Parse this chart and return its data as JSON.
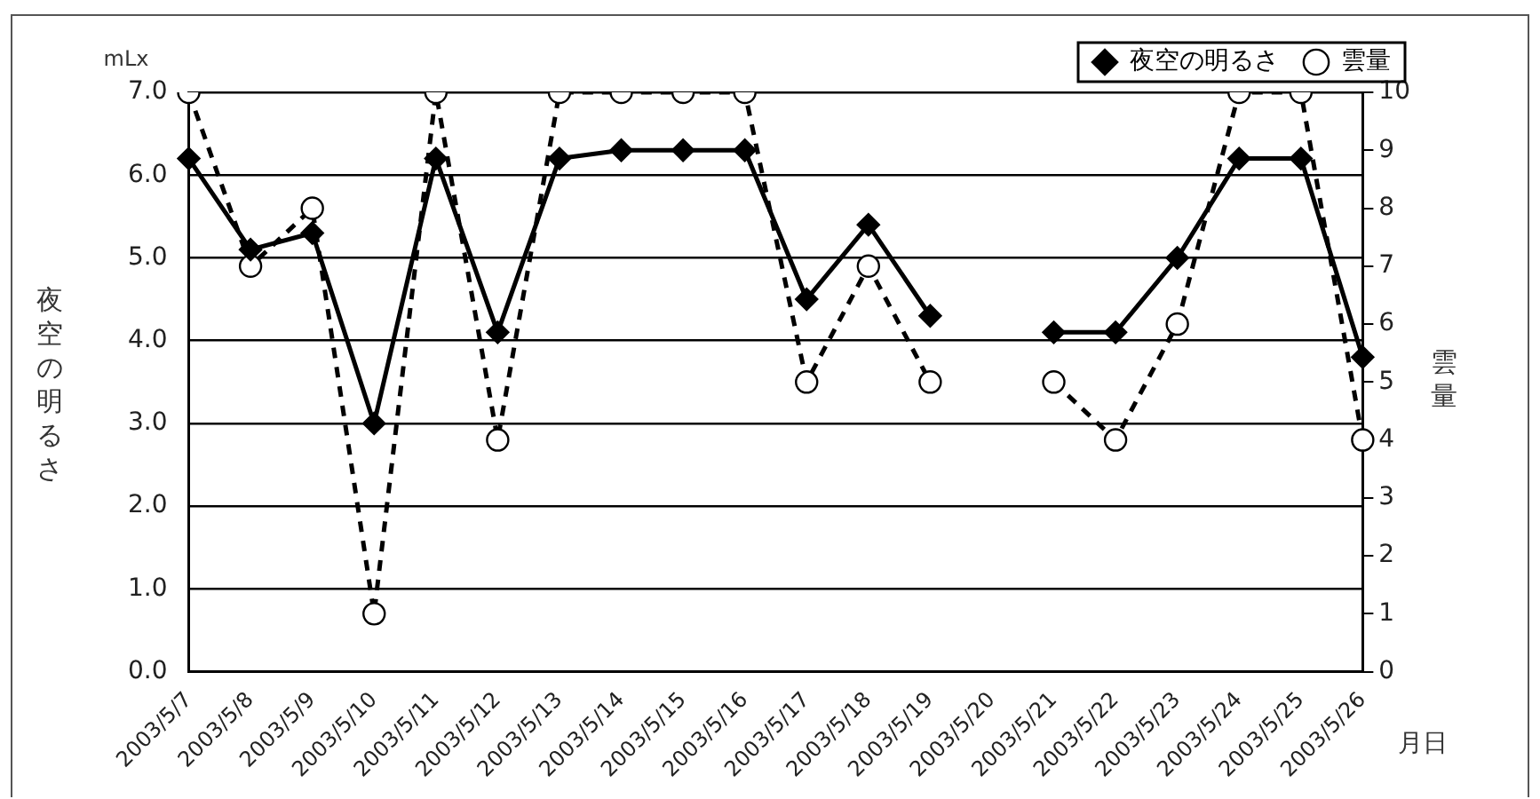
{
  "chart_data": {
    "type": "line",
    "categories": [
      "2003/5/7",
      "2003/5/8",
      "2003/5/9",
      "2003/5/10",
      "2003/5/11",
      "2003/5/12",
      "2003/5/13",
      "2003/5/14",
      "2003/5/15",
      "2003/5/16",
      "2003/5/17",
      "2003/5/18",
      "2003/5/19",
      "2003/5/20",
      "2003/5/21",
      "2003/5/22",
      "2003/5/23",
      "2003/5/24",
      "2003/5/25",
      "2003/5/26"
    ],
    "series": [
      {
        "name": "夜空の明るさ",
        "color": "#000000",
        "marker": "diamond",
        "line_style": "solid",
        "values": [
          6.2,
          5.1,
          5.3,
          3.0,
          6.2,
          4.1,
          6.2,
          6.3,
          6.3,
          6.3,
          4.5,
          5.4,
          4.3,
          null,
          4.1,
          4.1,
          5.0,
          6.2,
          6.2,
          3.8
        ]
      },
      {
        "name": "雲量",
        "color": "#000000",
        "marker": "circle",
        "line_style": "dashed",
        "axis": "y2",
        "values": [
          10,
          7,
          8,
          1,
          10,
          4,
          10,
          10,
          10,
          10,
          5,
          7,
          5,
          null,
          5,
          4,
          6,
          10,
          10,
          4
        ]
      }
    ],
    "xlabel": "月日",
    "ylabel": "夜空の明るさ",
    "y2label": "雲量",
    "annotations": [
      "mLx"
    ],
    "ylim": [
      0,
      7
    ],
    "yticks": [
      {
        "value": 0,
        "label": "0.0"
      },
      {
        "value": 1,
        "label": "1.0"
      },
      {
        "value": 2,
        "label": "2.0"
      },
      {
        "value": 3,
        "label": "3.0"
      },
      {
        "value": 4,
        "label": "4.0"
      },
      {
        "value": 5,
        "label": "5.0"
      },
      {
        "value": 6,
        "label": "6.0"
      },
      {
        "value": 7,
        "label": "7.0"
      }
    ],
    "y2lim": [
      0,
      10
    ],
    "y2ticks": [
      0,
      1,
      2,
      3,
      4,
      5,
      6,
      7,
      8,
      9,
      10
    ],
    "grid": "y",
    "legend": "top right"
  }
}
